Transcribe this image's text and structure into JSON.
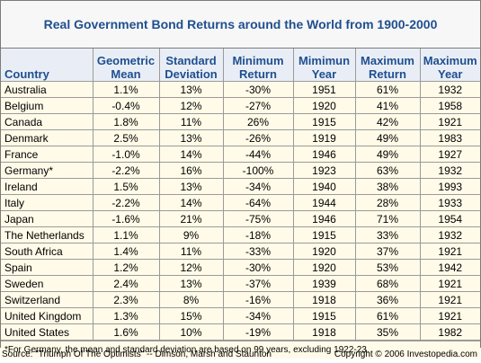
{
  "title": "Real Government Bond Returns around the World from 1900-2000",
  "headers": [
    "Country",
    "Geometric Mean",
    "Standard Deviation",
    "Minimum Return",
    "Mimimun Year",
    "Maximum Return",
    "Maximum Year"
  ],
  "rows": [
    [
      "Australia",
      "1.1%",
      "13%",
      "-30%",
      "1951",
      "61%",
      "1932"
    ],
    [
      "Belgium",
      "-0.4%",
      "12%",
      "-27%",
      "1920",
      "41%",
      "1958"
    ],
    [
      "Canada",
      "1.8%",
      "11%",
      "26%",
      "1915",
      "42%",
      "1921"
    ],
    [
      "Denmark",
      "2.5%",
      "13%",
      "-26%",
      "1919",
      "49%",
      "1983"
    ],
    [
      "France",
      "-1.0%",
      "14%",
      "-44%",
      "1946",
      "49%",
      "1927"
    ],
    [
      "Germany*",
      "-2.2%",
      "16%",
      "-100%",
      "1923",
      "63%",
      "1932"
    ],
    [
      "Ireland",
      "1.5%",
      "13%",
      "-34%",
      "1940",
      "38%",
      "1993"
    ],
    [
      "Italy",
      "-2.2%",
      "14%",
      "-64%",
      "1944",
      "28%",
      "1933"
    ],
    [
      "Japan",
      "-1.6%",
      "21%",
      "-75%",
      "1946",
      "71%",
      "1954"
    ],
    [
      "The Netherlands",
      "1.1%",
      "9%",
      "-18%",
      "1915",
      "33%",
      "1932"
    ],
    [
      "South Africa",
      "1.4%",
      "11%",
      "-33%",
      "1920",
      "37%",
      "1921"
    ],
    [
      "Spain",
      "1.2%",
      "12%",
      "-30%",
      "1920",
      "53%",
      "1942"
    ],
    [
      "Sweden",
      "2.4%",
      "13%",
      "-37%",
      "1939",
      "68%",
      "1921"
    ],
    [
      "Switzerland",
      "2.3%",
      "8%",
      "-16%",
      "1918",
      "36%",
      "1921"
    ],
    [
      "United Kingdom",
      "1.3%",
      "15%",
      "-34%",
      "1915",
      "61%",
      "1921"
    ],
    [
      "United States",
      "1.6%",
      "10%",
      "-19%",
      "1918",
      "35%",
      "1982"
    ]
  ],
  "footnote": "*For Germany, the mean and standard deviation are based on 99 years, excluding 1922-23.",
  "source": "Source: \"Triumph Of The Optimists\" -- Dimson, Marsh and Staunton",
  "copyright": "Copyright © 2006 Investopedia.com"
}
